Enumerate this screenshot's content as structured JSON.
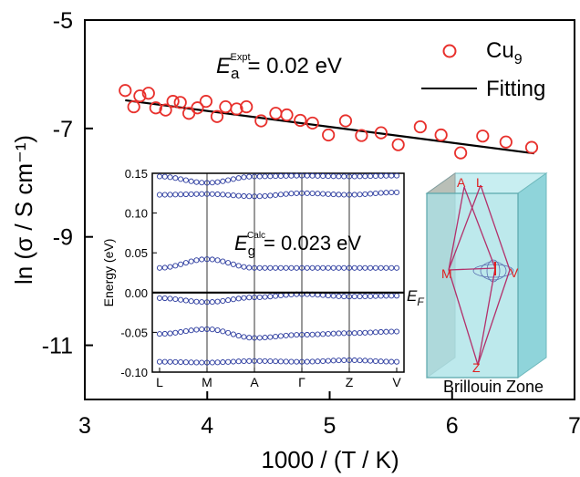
{
  "chart_data": [
    {
      "type": "scatter",
      "role": "main",
      "xlabel": "1000 / (T / K)",
      "ylabel": "ln (σ / S cm⁻¹)",
      "xlim": [
        3,
        7
      ],
      "ylim": [
        -12,
        -5
      ],
      "xticks": [
        3,
        4,
        5,
        6,
        7
      ],
      "yticks": [
        -5,
        -7,
        -9,
        -11
      ],
      "grid": false,
      "legend_placement": "top-right",
      "annotation": {
        "symbol": "E",
        "sub": "a",
        "sup": "Expt",
        "text": "= 0.02 eV"
      },
      "series": [
        {
          "name": "Cu9",
          "name_base": "Cu",
          "name_sub": "9",
          "marker": "open-circle",
          "color": "#e8302c",
          "x": [
            3.33,
            3.4,
            3.45,
            3.52,
            3.58,
            3.66,
            3.72,
            3.78,
            3.85,
            3.92,
            3.99,
            4.08,
            4.15,
            4.24,
            4.32,
            4.44,
            4.56,
            4.65,
            4.76,
            4.86,
            4.99,
            5.13,
            5.26,
            5.42,
            5.56,
            5.74,
            5.91,
            6.07,
            6.25,
            6.44,
            6.65
          ],
          "y": [
            -6.3,
            -6.6,
            -6.4,
            -6.35,
            -6.62,
            -6.66,
            -6.5,
            -6.52,
            -6.72,
            -6.62,
            -6.5,
            -6.78,
            -6.6,
            -6.64,
            -6.6,
            -6.86,
            -6.72,
            -6.75,
            -6.85,
            -6.9,
            -7.12,
            -6.86,
            -7.13,
            -7.08,
            -7.3,
            -6.97,
            -7.12,
            -7.45,
            -7.14,
            -7.25,
            -7.35
          ]
        },
        {
          "name": "Fitting",
          "line": true,
          "color": "#000000",
          "x": [
            3.33,
            6.67
          ],
          "y": [
            -6.48,
            -7.46
          ]
        }
      ]
    },
    {
      "type": "line",
      "role": "inset-band-structure",
      "ylabel": "Energy (eV)",
      "categories": [
        "L",
        "M",
        "A",
        "Γ",
        "Z",
        "V"
      ],
      "ylim": [
        -0.1,
        0.15
      ],
      "yticks": [
        -0.1,
        -0.05,
        0.0,
        0.05,
        0.1,
        0.15
      ],
      "ytick_labels": [
        "-0.10",
        "-0.05",
        "0.00",
        "0.05",
        "0.10",
        "0.15"
      ],
      "fermi_label_base": "E",
      "fermi_label_sub": "F",
      "annotation": {
        "symbol": "E",
        "sub": "g",
        "sup": "Calc",
        "text": "= 0.023 eV"
      },
      "marker_color": "#2a3a9e",
      "series": [
        {
          "name": "band1",
          "values": [
            0.146,
            0.138,
            0.146,
            0.147,
            0.146,
            0.147
          ]
        },
        {
          "name": "band2",
          "values": [
            0.123,
            0.124,
            0.121,
            0.125,
            0.123,
            0.126
          ]
        },
        {
          "name": "band3",
          "values": [
            0.031,
            0.042,
            0.031,
            0.031,
            0.031,
            0.031
          ]
        },
        {
          "name": "band4",
          "values": [
            -0.007,
            -0.012,
            -0.006,
            -0.002,
            -0.005,
            -0.004
          ]
        },
        {
          "name": "band5",
          "values": [
            -0.052,
            -0.046,
            -0.057,
            -0.053,
            -0.051,
            -0.049
          ]
        },
        {
          "name": "band6",
          "values": [
            -0.087,
            -0.088,
            -0.086,
            -0.087,
            -0.085,
            -0.087
          ]
        }
      ]
    }
  ],
  "brillouin": {
    "title": "Brillouin Zone",
    "labels": [
      "A",
      "L",
      "M",
      "V",
      "Z"
    ],
    "colors": {
      "face": "#9fdde3",
      "edge": "#6fb9bd",
      "path": "#b3306b",
      "label": "#e02020"
    }
  }
}
